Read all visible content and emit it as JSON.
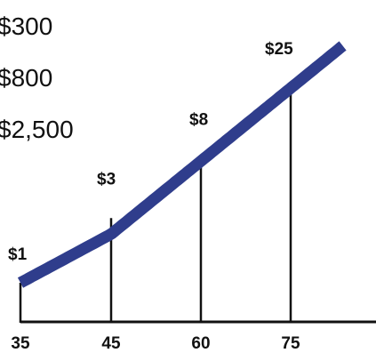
{
  "side_text": [
    "$300",
    "$800",
    "$2,500"
  ],
  "chart_data": {
    "type": "line",
    "x": [
      35,
      45,
      60,
      75
    ],
    "values": [
      1,
      3,
      8,
      25
    ],
    "data_labels": [
      "$1",
      "$3",
      "$8",
      "$25"
    ],
    "tick_labels": [
      "35",
      "45",
      "60",
      "75"
    ],
    "title": "",
    "xlabel": "",
    "ylabel": "",
    "grid": false,
    "legend": "none",
    "colors": {
      "curve": "#2f3d8c",
      "axis": "#111111",
      "text": "#111111"
    }
  }
}
